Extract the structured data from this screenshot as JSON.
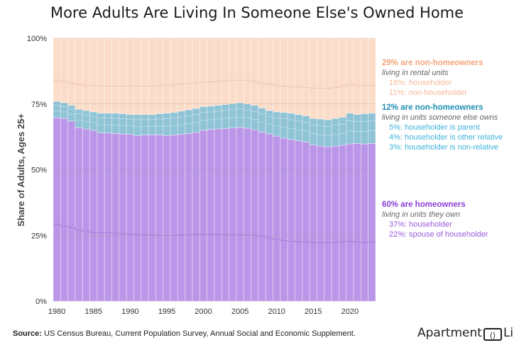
{
  "title": "More Adults Are Living In Someone Else's Owned Home",
  "colors": {
    "rental": "#fbdcc8",
    "other_owned": "#8fc3d6",
    "owned": "#bb95e8",
    "rental_head": "#f4a57c",
    "rental_sub": "#f7b89a",
    "other_head": "#1f8fb5",
    "other_sub": "#3fb3da",
    "owned_head": "#8a3fd6",
    "owned_sub": "#9b59dd"
  },
  "chart_data": {
    "type": "bar",
    "stacked": true,
    "ylabel": "Share of Adults, Ages 25+",
    "ylim": [
      0,
      100
    ],
    "yticks": [
      "0%",
      "25%",
      "50%",
      "75%",
      "100%"
    ],
    "xticks": [
      "1980",
      "1985",
      "1990",
      "1995",
      "2000",
      "2005",
      "2010",
      "2015",
      "2020"
    ],
    "years": [
      1980,
      1981,
      1982,
      1983,
      1984,
      1985,
      1986,
      1987,
      1988,
      1989,
      1990,
      1991,
      1992,
      1993,
      1994,
      1995,
      1996,
      1997,
      1998,
      1999,
      2000,
      2001,
      2002,
      2003,
      2004,
      2005,
      2006,
      2007,
      2008,
      2009,
      2010,
      2011,
      2012,
      2013,
      2014,
      2015,
      2016,
      2017,
      2018,
      2019,
      2020,
      2021,
      2022,
      2023
    ],
    "owner_householder": [
      29,
      28.5,
      28,
      27,
      26.5,
      26,
      26,
      26,
      25.8,
      25.6,
      25.5,
      25.3,
      25.2,
      25.1,
      25,
      25,
      25,
      25.2,
      25.3,
      25.4,
      25.5,
      25.5,
      25.4,
      25.3,
      25.3,
      25.2,
      25.1,
      25,
      24.5,
      24,
      23.5,
      23,
      22.8,
      22.5,
      22.5,
      22.3,
      22.3,
      22.3,
      22.3,
      22.5,
      22.8,
      22.5,
      22.3,
      22.5
    ],
    "homeowner_total": [
      69.8,
      69.5,
      68.5,
      66,
      65.5,
      65,
      64,
      64,
      63.8,
      63.6,
      63.5,
      63,
      63.2,
      63.3,
      63.2,
      63,
      63.2,
      63.5,
      63.8,
      64.2,
      65,
      65.3,
      65.5,
      65.7,
      65.9,
      66.1,
      65.8,
      65.2,
      64.3,
      63.6,
      62.8,
      62,
      61.5,
      61,
      60.5,
      59.5,
      59,
      58.7,
      59,
      59.3,
      59.8,
      60,
      59.8,
      60
    ],
    "nonowner_other_total": [
      76,
      75.5,
      74.5,
      73,
      72.5,
      72,
      71.5,
      71.5,
      71.5,
      71.3,
      71,
      71,
      71,
      71,
      71.3,
      71.5,
      71.8,
      72.3,
      72.8,
      73.3,
      74,
      74.2,
      74.5,
      74.8,
      75.2,
      75.5,
      75,
      74.5,
      73.5,
      72.5,
      72,
      71.8,
      71.5,
      71,
      70.5,
      69.5,
      69.3,
      69,
      69.5,
      70,
      71.5,
      71,
      71.3,
      71.5
    ],
    "rental_householder_top": [
      84,
      83.5,
      83,
      82.5,
      82,
      82,
      81.8,
      81.8,
      81.8,
      81.8,
      81.8,
      81.8,
      81.8,
      81.8,
      82,
      82.2,
      82.4,
      82.6,
      82.8,
      83,
      83.2,
      83.4,
      83.6,
      83.8,
      84,
      84,
      84,
      83.5,
      83,
      82.5,
      82,
      81.8,
      81.5,
      81.5,
      81.3,
      81,
      81,
      81,
      81.3,
      81.8,
      82.5,
      82,
      82,
      82
    ]
  },
  "annotations": [
    {
      "head": "29% are non-homeowners",
      "sub": "living in rental units",
      "items": [
        "18%: householder",
        "11%: non-householder"
      ]
    },
    {
      "head": "12% are non-homeowners",
      "sub": "living in units someone else owns",
      "items": [
        "5%: householder is parent",
        "4%: householder is other relative",
        "3%: householder is non-relative"
      ]
    },
    {
      "head": "60% are homeowners",
      "sub": "living in units they own",
      "items": [
        "37%: householder",
        "22%: spouse of householder"
      ]
    }
  ],
  "source": {
    "label": "Source:",
    "text": " US Census Bureau, Current Population Survey, Annual Social and Economic Supplement."
  },
  "logo": {
    "left": "Apartment",
    "mark": "⟨⟩",
    "right": "List"
  }
}
